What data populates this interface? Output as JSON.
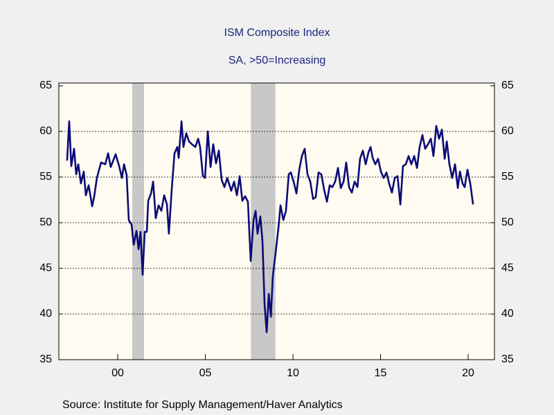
{
  "chart_data": {
    "type": "line",
    "title": "ISM Composite Index",
    "subtitle": "SA, >50=Increasing",
    "source": "Source:  Institute for Supply Management/Haver Analytics",
    "x": [
      1997.11,
      1997.23,
      1997.35,
      1997.51,
      1997.63,
      1997.75,
      1997.9,
      1998.06,
      1998.18,
      1998.34,
      1998.54,
      1998.66,
      1998.81,
      1999.05,
      1999.29,
      1999.45,
      1999.6,
      1999.88,
      2000.08,
      2000.24,
      2000.36,
      2000.51,
      2000.63,
      2000.79,
      2000.91,
      2001.07,
      2001.19,
      2001.3,
      2001.42,
      2001.54,
      2001.66,
      2001.74,
      2001.9,
      2002.02,
      2002.17,
      2002.33,
      2002.49,
      2002.65,
      2002.81,
      2002.92,
      2003.08,
      2003.24,
      2003.4,
      2003.48,
      2003.64,
      2003.75,
      2003.91,
      2004.07,
      2004.23,
      2004.43,
      2004.59,
      2004.7,
      2004.86,
      2004.98,
      2005.14,
      2005.3,
      2005.45,
      2005.61,
      2005.77,
      2005.93,
      2006.09,
      2006.25,
      2006.48,
      2006.64,
      2006.8,
      2006.96,
      2007.11,
      2007.27,
      2007.43,
      2007.59,
      2007.75,
      2007.87,
      2007.98,
      2008.14,
      2008.26,
      2008.38,
      2008.5,
      2008.62,
      2008.74,
      2008.85,
      2009.01,
      2009.17,
      2009.29,
      2009.45,
      2009.6,
      2009.76,
      2009.88,
      2010.04,
      2010.2,
      2010.36,
      2010.51,
      2010.67,
      2010.83,
      2010.99,
      2011.15,
      2011.3,
      2011.46,
      2011.62,
      2011.78,
      2011.94,
      2012.1,
      2012.25,
      2012.41,
      2012.57,
      2012.73,
      2012.89,
      2013.04,
      2013.2,
      2013.36,
      2013.52,
      2013.68,
      2013.83,
      2013.99,
      2014.15,
      2014.31,
      2014.43,
      2014.55,
      2014.7,
      2014.86,
      2015.02,
      2015.18,
      2015.34,
      2015.49,
      2015.65,
      2015.81,
      2015.97,
      2016.13,
      2016.28,
      2016.44,
      2016.6,
      2016.76,
      2016.92,
      2017.08,
      2017.23,
      2017.39,
      2017.55,
      2017.71,
      2017.87,
      2018.02,
      2018.18,
      2018.34,
      2018.5,
      2018.66,
      2018.78,
      2018.93,
      2019.09,
      2019.25,
      2019.41,
      2019.53,
      2019.68,
      2019.8,
      2019.96,
      2020.12,
      2020.28
    ],
    "series": [
      {
        "name": "ISM Composite Index",
        "color": "#0a0a78",
        "values": [
          56.8,
          61.1,
          56.2,
          58.1,
          55.3,
          56.4,
          54.3,
          55.6,
          53,
          54.1,
          51.8,
          52.9,
          54.9,
          56.6,
          56.4,
          57.6,
          56.1,
          57.5,
          56.2,
          54.9,
          56.4,
          55.2,
          50.3,
          49.8,
          47.6,
          49.1,
          47.1,
          49,
          44.3,
          49,
          49,
          52.4,
          53.2,
          54.5,
          50.5,
          51.9,
          51.3,
          53,
          52,
          48.8,
          53.6,
          57.6,
          58.3,
          57.1,
          61.1,
          58.3,
          59.8,
          58.9,
          58.6,
          58.3,
          59.2,
          58.3,
          55.1,
          54.9,
          60,
          56.1,
          58.6,
          56.5,
          57.9,
          54.7,
          53.9,
          54.9,
          53.5,
          54.5,
          53,
          55.1,
          52.4,
          52.9,
          52.3,
          45.8,
          50.3,
          51.3,
          48.8,
          50.7,
          48,
          41.1,
          38,
          42.2,
          39.7,
          44.1,
          46.7,
          49.4,
          51.9,
          50.3,
          51.3,
          55.3,
          55.5,
          54.5,
          53.2,
          55.8,
          57.3,
          58.1,
          55.3,
          54.5,
          52.6,
          52.8,
          55.5,
          55.3,
          53.6,
          52.3,
          54.1,
          53.9,
          54.5,
          56,
          53.8,
          54.5,
          56.6,
          53.9,
          53.3,
          54.5,
          53.9,
          57,
          57.9,
          56.4,
          57.7,
          58.3,
          57.1,
          56.4,
          57,
          55.6,
          54.9,
          55.5,
          54.3,
          53.3,
          54.9,
          55.1,
          52,
          56.2,
          56.4,
          57.3,
          56.4,
          57.3,
          56,
          58.3,
          59.6,
          58.1,
          58.6,
          59.2,
          57.3,
          60.6,
          59.2,
          60.2,
          57,
          58.9,
          56.4,
          54.9,
          56.4,
          53.8,
          55.6,
          54.3,
          53.9,
          55.8,
          54.3,
          52
        ]
      }
    ],
    "shaded_periods": [
      [
        2000.83,
        2001.5
      ],
      [
        2007.6,
        2009.0
      ]
    ],
    "shade_color": "#c8c8c8",
    "xlim": [
      1996.64,
      2021.5
    ],
    "xticks": [
      {
        "value": 2000,
        "label": "00"
      },
      {
        "value": 2005,
        "label": "05"
      },
      {
        "value": 2010,
        "label": "10"
      },
      {
        "value": 2015,
        "label": "15"
      },
      {
        "value": 2020,
        "label": "20"
      }
    ],
    "ylim": [
      35,
      65
    ],
    "yticks": [
      35,
      40,
      45,
      50,
      55,
      60,
      65
    ],
    "grid": true
  }
}
